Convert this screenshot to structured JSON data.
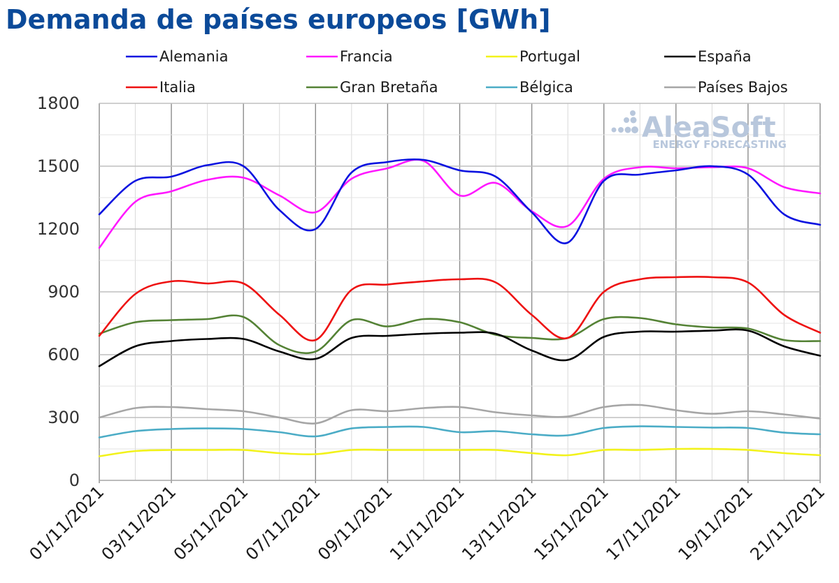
{
  "chart_data": {
    "type": "line",
    "title": "Demanda de países europeos [GWh]",
    "xlabel": "",
    "ylabel": "",
    "ylim": [
      0,
      1800
    ],
    "yticks": [
      0,
      300,
      600,
      900,
      1200,
      1500,
      1800
    ],
    "grid": true,
    "legend_position": "top",
    "x_tick_labels": [
      "01/11/2021",
      "03/11/2021",
      "05/11/2021",
      "07/11/2021",
      "09/11/2021",
      "11/11/2021",
      "13/11/2021",
      "15/11/2021",
      "17/11/2021",
      "19/11/2021",
      "21/11/2021"
    ],
    "categories": [
      "01/11/2021",
      "02/11/2021",
      "03/11/2021",
      "04/11/2021",
      "05/11/2021",
      "06/11/2021",
      "07/11/2021",
      "08/11/2021",
      "09/11/2021",
      "10/11/2021",
      "11/11/2021",
      "12/11/2021",
      "13/11/2021",
      "14/11/2021",
      "15/11/2021",
      "16/11/2021",
      "17/11/2021",
      "18/11/2021",
      "19/11/2021",
      "20/11/2021",
      "21/11/2021"
    ],
    "series": [
      {
        "name": "Alemania",
        "color": "#0a12e0",
        "values": [
          1270,
          1430,
          1450,
          1505,
          1500,
          1290,
          1200,
          1470,
          1520,
          1530,
          1480,
          1450,
          1280,
          1135,
          1430,
          1460,
          1480,
          1500,
          1460,
          1270,
          1220
        ]
      },
      {
        "name": "Francia",
        "color": "#ff18ff",
        "values": [
          1110,
          1330,
          1380,
          1435,
          1445,
          1360,
          1280,
          1440,
          1490,
          1525,
          1360,
          1420,
          1285,
          1215,
          1440,
          1495,
          1490,
          1495,
          1490,
          1400,
          1370
        ]
      },
      {
        "name": "Portugal",
        "color": "#f2f21a",
        "values": [
          115,
          140,
          145,
          145,
          145,
          130,
          125,
          145,
          145,
          145,
          145,
          145,
          130,
          120,
          145,
          145,
          150,
          150,
          145,
          130,
          120
        ]
      },
      {
        "name": "España",
        "color": "#000000",
        "values": [
          545,
          640,
          665,
          675,
          675,
          615,
          580,
          680,
          690,
          700,
          705,
          700,
          620,
          575,
          685,
          710,
          710,
          715,
          715,
          640,
          595
        ]
      },
      {
        "name": "Italia",
        "color": "#ee1111",
        "values": [
          690,
          890,
          950,
          940,
          940,
          790,
          670,
          910,
          935,
          950,
          960,
          945,
          790,
          680,
          900,
          960,
          970,
          970,
          945,
          790,
          705
        ]
      },
      {
        "name": "Gran Bretaña",
        "color": "#548235",
        "values": [
          700,
          755,
          765,
          770,
          780,
          645,
          615,
          765,
          735,
          770,
          755,
          695,
          680,
          680,
          770,
          775,
          745,
          730,
          725,
          670,
          665
        ]
      },
      {
        "name": "Bélgica",
        "color": "#4bacc6",
        "values": [
          205,
          235,
          245,
          248,
          245,
          230,
          210,
          248,
          255,
          255,
          230,
          235,
          220,
          215,
          250,
          258,
          255,
          252,
          250,
          228,
          220
        ]
      },
      {
        "name": "Países Bajos",
        "color": "#a6a6a6",
        "values": [
          300,
          345,
          350,
          340,
          330,
          300,
          272,
          335,
          330,
          345,
          350,
          325,
          310,
          305,
          350,
          360,
          335,
          318,
          330,
          315,
          295
        ]
      }
    ]
  },
  "watermark": {
    "brand": "AleaSoft",
    "tagline": "ENERGY FORECASTING"
  }
}
